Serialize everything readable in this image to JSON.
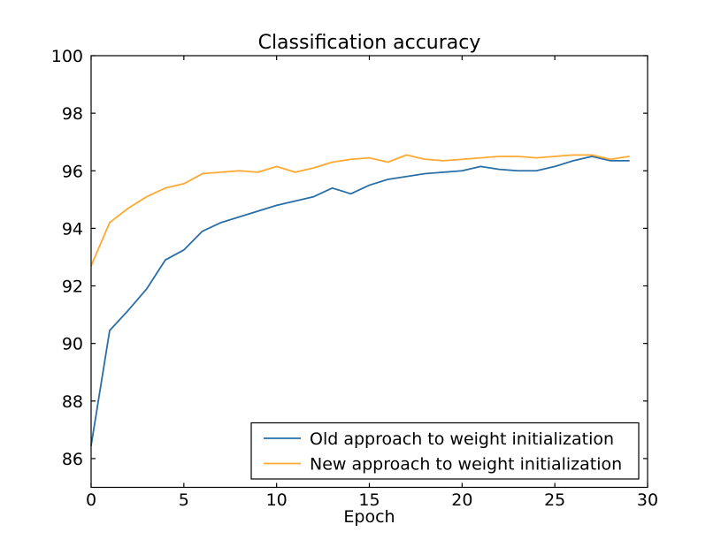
{
  "figure": {
    "background": "#ffffff",
    "axis_color": "#000000",
    "line_width": 1.8
  },
  "chart_data": {
    "type": "line",
    "title": "Classification accuracy",
    "xlabel": "Epoch",
    "ylabel": "",
    "xlim": [
      0,
      30
    ],
    "ylim": [
      85,
      100
    ],
    "xticks": [
      0,
      5,
      10,
      15,
      20,
      25,
      30
    ],
    "yticks": [
      86,
      88,
      90,
      92,
      94,
      96,
      98,
      100
    ],
    "grid": false,
    "legend_position": "lower right",
    "x": [
      0,
      1,
      2,
      3,
      4,
      5,
      6,
      7,
      8,
      9,
      10,
      11,
      12,
      13,
      14,
      15,
      16,
      17,
      18,
      19,
      20,
      21,
      22,
      23,
      24,
      25,
      26,
      27,
      28,
      29
    ],
    "series": [
      {
        "name": "Old approach to weight initialization",
        "color": "#2A6EA6",
        "values": [
          86.45,
          90.45,
          91.15,
          91.9,
          92.9,
          93.25,
          93.9,
          94.2,
          94.4,
          94.6,
          94.8,
          94.95,
          95.1,
          95.4,
          95.2,
          95.5,
          95.7,
          95.8,
          95.9,
          95.95,
          96.0,
          96.15,
          96.05,
          96.0,
          96.0,
          96.15,
          96.35,
          96.5,
          96.35,
          96.35
        ]
      },
      {
        "name": "New approach to weight initialization",
        "color": "#FFA933",
        "values": [
          92.7,
          94.2,
          94.7,
          95.1,
          95.4,
          95.55,
          95.9,
          95.95,
          96.0,
          95.95,
          96.15,
          95.95,
          96.1,
          96.3,
          96.4,
          96.45,
          96.3,
          96.55,
          96.4,
          96.35,
          96.4,
          96.45,
          96.5,
          96.5,
          96.45,
          96.5,
          96.55,
          96.55,
          96.4,
          96.5
        ]
      }
    ]
  }
}
